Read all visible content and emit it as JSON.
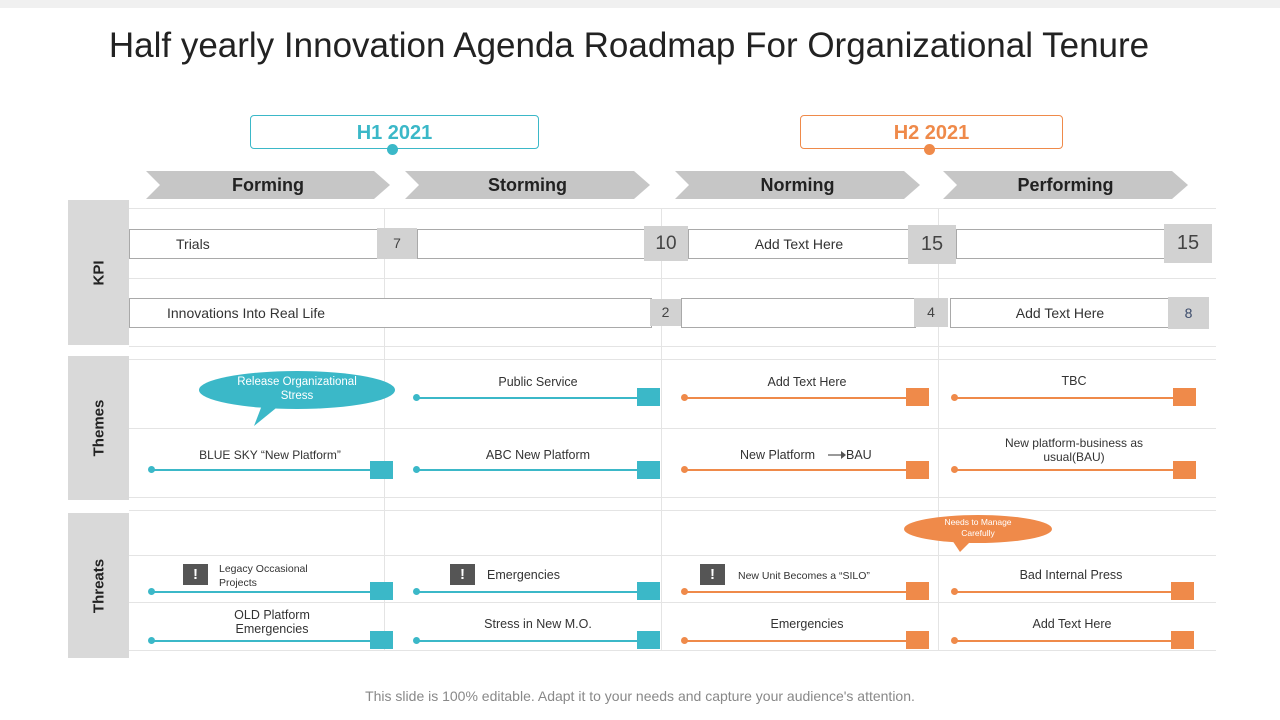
{
  "title": "Half yearly Innovation Agenda Roadmap For Organizational Tenure",
  "colors": {
    "blue": "#3bb8c8",
    "orange": "#ef8a4a",
    "gray": "#c6c6c6"
  },
  "periods": {
    "h1": "H1 2021",
    "h2": "H2 2021"
  },
  "phases": [
    "Forming",
    "Storming",
    "Norming",
    "Performing"
  ],
  "sections": {
    "kpi": "KPI",
    "themes": "Themes",
    "threats": "Threats"
  },
  "kpi": {
    "row1": {
      "trials": "Trials",
      "v1": "7",
      "v2": "10",
      "text3": "Add Text Here",
      "v3": "15",
      "v4": "15"
    },
    "row2": {
      "innovations": "Innovations Into Real Life",
      "v1": "2",
      "v2": "4",
      "text3": "Add Text Here",
      "v3": "8"
    }
  },
  "themes": {
    "callout": "Release Organizational Stress",
    "row1": [
      "Public Service",
      "Add Text Here",
      "TBC"
    ],
    "row2": [
      "BLUE SKY “New Platform”",
      "ABC New Platform",
      "New Platform",
      "BAU",
      "New platform-business as usual(BAU)"
    ]
  },
  "threats": {
    "callout": "Needs to Manage Carefully",
    "warning_icon": "!",
    "row1": [
      "Legacy Occasional Projects",
      "Emergencies",
      "New Unit Becomes a “SILO”",
      "Bad Internal Press"
    ],
    "row2": [
      "OLD Platform Emergencies",
      "Stress in New M.O.",
      "Emergencies",
      "Add Text Here"
    ]
  },
  "footer": "This slide is 100% editable. Adapt it to your needs and capture your audience's attention."
}
